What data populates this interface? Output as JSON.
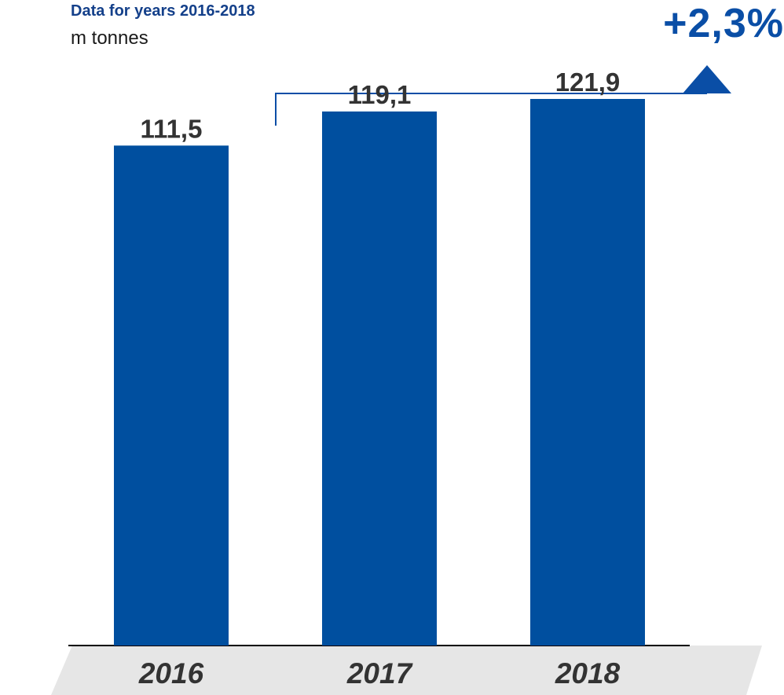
{
  "chart_data": {
    "type": "bar",
    "title": "Data for years 2016-2018",
    "subtitle": "m tonnes",
    "categories": [
      "2016",
      "2017",
      "2018"
    ],
    "values": [
      111.5,
      119.1,
      121.9
    ],
    "value_labels": [
      "111,5",
      "119,1",
      "121,9"
    ],
    "ylim": [
      0,
      124
    ],
    "growth_annotation": "+2,3%",
    "bar_color": "#004f9f",
    "annotation_color": "#0a4ea6",
    "grid": false,
    "legend": "none"
  }
}
